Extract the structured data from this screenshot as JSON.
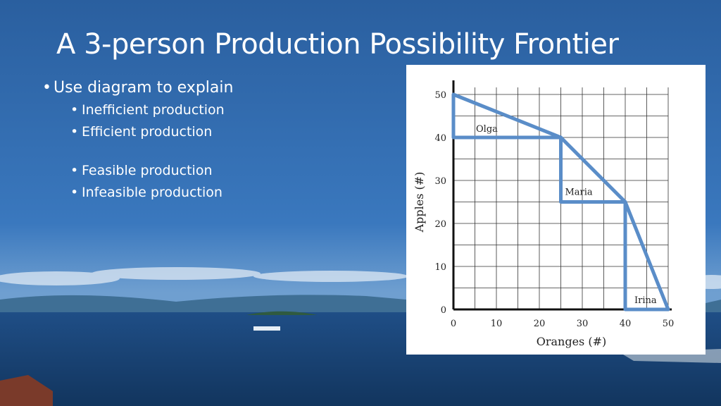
{
  "slide": {
    "title": "A 3-person Production Possibility Frontier",
    "bullets": {
      "level1": "Use diagram to explain",
      "level2_a": [
        "Inefficient production",
        "Efficient production"
      ],
      "level2_b": [
        "Feasible production",
        "Infeasible production"
      ]
    }
  },
  "colors": {
    "frontier": "#5a8dc8",
    "grid": "#222222",
    "background_sky": "#2f6bb0"
  },
  "chart_data": {
    "type": "line",
    "xlabel": "Oranges (#)",
    "ylabel": "Apples (#)",
    "xlim": [
      0,
      50
    ],
    "ylim": [
      0,
      50
    ],
    "x_ticks": [
      0,
      10,
      20,
      30,
      40,
      50
    ],
    "y_ticks": [
      0,
      10,
      20,
      30,
      40,
      50
    ],
    "grid": true,
    "frontier": {
      "x": [
        0,
        25,
        40,
        50
      ],
      "y": [
        50,
        40,
        25,
        0
      ]
    },
    "segments": [
      {
        "label": "Olga",
        "x": [
          0,
          25
        ],
        "y": [
          50,
          40
        ]
      },
      {
        "label": "Maria",
        "x": [
          25,
          40
        ],
        "y": [
          40,
          25
        ]
      },
      {
        "label": "Irina",
        "x": [
          40,
          50
        ],
        "y": [
          25,
          0
        ]
      }
    ]
  }
}
